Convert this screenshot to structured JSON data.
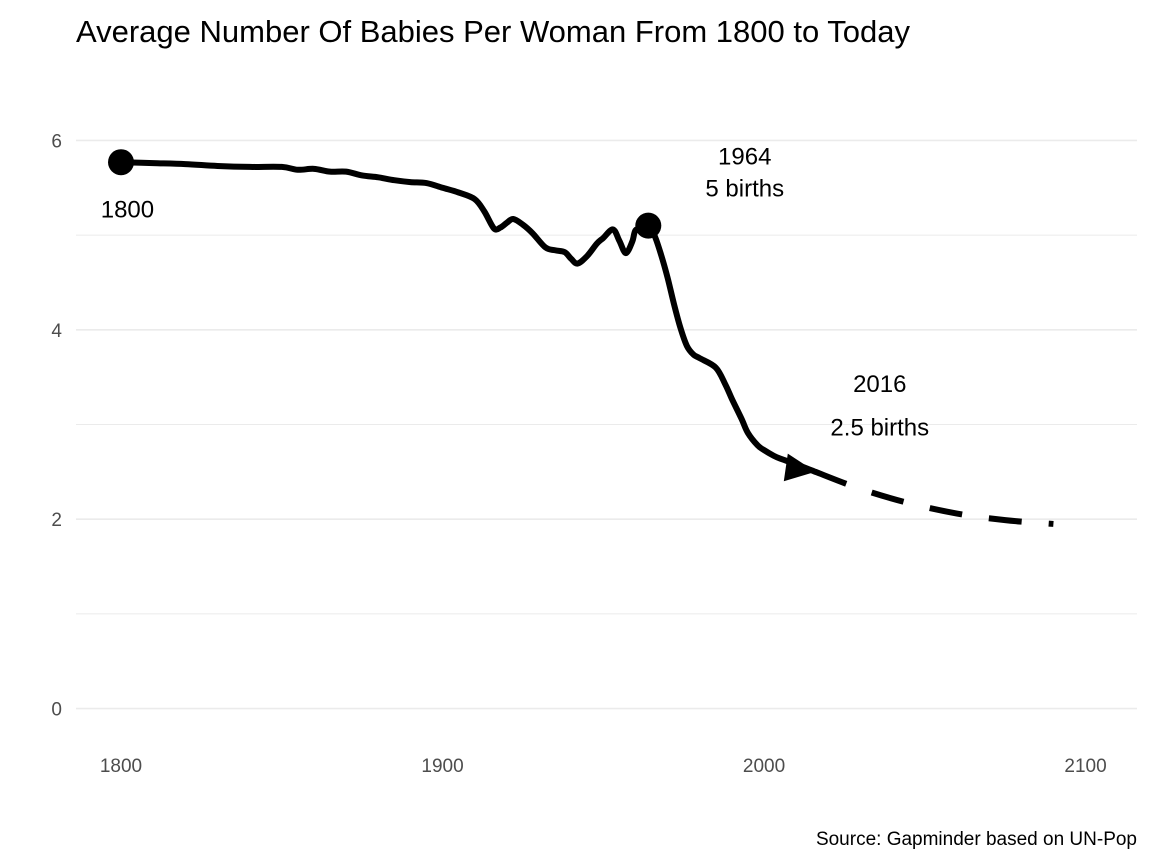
{
  "chart_data": {
    "type": "line",
    "title": "Average Number Of Babies Per Woman From 1800 to Today",
    "caption": "Source: Gapminder based on UN-Pop",
    "xlabel": "",
    "ylabel": "",
    "xlim": [
      1786,
      2116
    ],
    "ylim": [
      -0.3,
      6.3
    ],
    "x_ticks": [
      1800,
      1900,
      2000,
      2100
    ],
    "y_ticks": [
      0,
      2,
      4,
      6
    ],
    "grid": true,
    "legend": "none",
    "colors": {
      "line": "#000000",
      "grid": "#ebebeb",
      "tick_text": "#4d4d4d"
    },
    "series": [
      {
        "style": "solid",
        "x": [
          1800,
          1810,
          1820,
          1830,
          1840,
          1850,
          1855,
          1860,
          1865,
          1870,
          1875,
          1880,
          1885,
          1890,
          1895,
          1900,
          1905,
          1910,
          1913,
          1916,
          1918,
          1920,
          1922,
          1925,
          1928,
          1932,
          1935,
          1938,
          1940,
          1942,
          1945,
          1948,
          1950,
          1953,
          1955,
          1957,
          1959,
          1960,
          1962,
          1964,
          1966,
          1968,
          1970,
          1972,
          1974,
          1976,
          1978,
          1980,
          1985,
          1988,
          1990,
          1993,
          1995,
          1998,
          2000,
          2003,
          2005,
          2010,
          2016
        ],
        "y": [
          5.77,
          5.76,
          5.75,
          5.73,
          5.72,
          5.72,
          5.69,
          5.7,
          5.67,
          5.67,
          5.63,
          5.61,
          5.58,
          5.56,
          5.55,
          5.5,
          5.45,
          5.38,
          5.25,
          5.07,
          5.08,
          5.13,
          5.17,
          5.11,
          5.02,
          4.87,
          4.84,
          4.82,
          4.75,
          4.7,
          4.78,
          4.91,
          4.97,
          5.06,
          4.94,
          4.81,
          4.93,
          5.05,
          5.07,
          5.1,
          4.99,
          4.79,
          4.55,
          4.27,
          4.02,
          3.83,
          3.74,
          3.7,
          3.6,
          3.42,
          3.27,
          3.06,
          2.91,
          2.78,
          2.73,
          2.67,
          2.64,
          2.58,
          2.5
        ]
      },
      {
        "style": "dashed",
        "x": [
          2016,
          2030,
          2045,
          2060,
          2075,
          2090
        ],
        "y": [
          2.5,
          2.32,
          2.17,
          2.06,
          1.99,
          1.95
        ]
      }
    ],
    "markers": [
      {
        "x": 1800,
        "y": 5.77
      },
      {
        "x": 1964,
        "y": 5.1
      }
    ],
    "arrow": {
      "from_x": 2008,
      "from_y": 2.54,
      "to_x": 2016,
      "to_y": 2.5
    },
    "annotations": [
      {
        "id": "a1800",
        "x": 1802,
        "y": 5.27,
        "text": "1800"
      },
      {
        "id": "a1964y",
        "x": 1994,
        "y": 5.83,
        "text": "1964"
      },
      {
        "id": "a1964b",
        "x": 1994,
        "y": 5.49,
        "text": "5 births"
      },
      {
        "id": "a2016y",
        "x": 2036,
        "y": 3.43,
        "text": "2016"
      },
      {
        "id": "a2016b",
        "x": 2036,
        "y": 2.97,
        "text": "2.5 births"
      }
    ]
  }
}
